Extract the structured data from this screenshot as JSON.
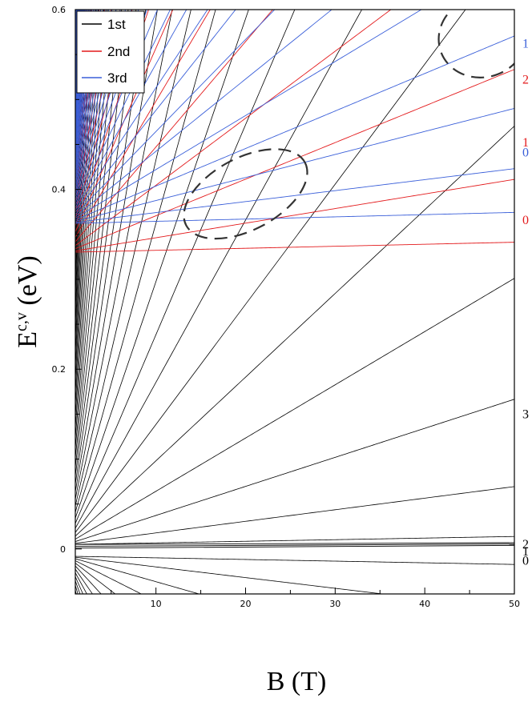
{
  "chart_data": {
    "type": "line",
    "title": "",
    "xlabel": "B (T)",
    "ylabel_main": "E",
    "ylabel_sup": "c,v",
    "ylabel_unit": " (eV)",
    "xlim": [
      1,
      50
    ],
    "ylim": [
      -0.05,
      0.6
    ],
    "x_ticks": [
      10,
      20,
      30,
      40,
      50
    ],
    "y_ticks": [
      0,
      0.2,
      0.4,
      0.6
    ],
    "legend": {
      "placement": "top-left",
      "entries": [
        {
          "name": "1st",
          "color": "#000000"
        },
        {
          "name": "2nd",
          "color": "#e31a1c"
        },
        {
          "name": "3rd",
          "color": "#3a5fd9"
        }
      ]
    },
    "groups": {
      "first": {
        "name": "1st",
        "color": "#000000",
        "onset": 0.005,
        "slope": 0.0054,
        "power": 1.8,
        "labels": [
          {
            "text": "3",
            "y": 0.15
          },
          {
            "text": "2",
            "y": 0.005
          },
          {
            "text": "1",
            "y": -0.003
          },
          {
            "text": "0",
            "y": -0.013
          }
        ]
      },
      "second": {
        "name": "2nd",
        "color": "#e31a1c",
        "onset": 0.33,
        "slope": 0.0068,
        "power": 1.8,
        "labels": [
          {
            "text": "0",
            "y": 0.366
          },
          {
            "text": "1",
            "y": 0.452
          },
          {
            "text": "2",
            "y": 0.522
          }
        ]
      },
      "third": {
        "name": "3rd",
        "color": "#3a5fd9",
        "onset": 0.362,
        "slope": 0.0059,
        "power": 1.45,
        "labels": [
          {
            "text": "0",
            "y": 0.441
          },
          {
            "text": "1",
            "y": 0.562
          }
        ]
      },
      "valence": {
        "onset": -0.008,
        "slope": -0.0052,
        "power": 1.7
      }
    },
    "annotations": [
      {
        "type": "dashed-ellipse",
        "cx": 20,
        "cy": 0.395,
        "rx_data": 7.5,
        "ry_data": 0.04,
        "angle": -28
      },
      {
        "type": "dashed-ellipse",
        "cx": 46.5,
        "cy": 0.57,
        "rx_data": 5,
        "ry_data": 0.045,
        "angle": -20
      }
    ]
  }
}
